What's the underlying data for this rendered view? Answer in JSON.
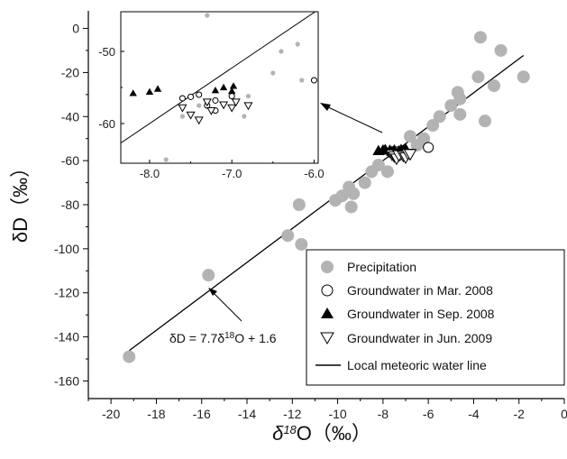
{
  "chart_data": {
    "main": {
      "type": "scatter",
      "xlabel": "δ18O（‰）",
      "xlabel_parts": {
        "delta": "δ",
        "sup": "18",
        "base": "O（‰）"
      },
      "ylabel": "δD（‰）",
      "xlim": [
        -21,
        0
      ],
      "ylim": [
        -168,
        8
      ],
      "xticks": [
        -20,
        -18,
        -16,
        -14,
        -12,
        -10,
        -8,
        -6,
        -4,
        -2,
        0
      ],
      "yticks": [
        0,
        -20,
        -40,
        -60,
        -80,
        -100,
        -120,
        -140,
        -160
      ],
      "series": [
        {
          "name": "Precipitation",
          "marker": "filled-circle",
          "color": "#b3b3b3",
          "points": [
            [
              -19.2,
              -149
            ],
            [
              -15.7,
              -112
            ],
            [
              -12.2,
              -94
            ],
            [
              -11.7,
              -80
            ],
            [
              -11.6,
              -98
            ],
            [
              -10.1,
              -78
            ],
            [
              -9.8,
              -76
            ],
            [
              -9.5,
              -72
            ],
            [
              -9.4,
              -81
            ],
            [
              -9.3,
              -75
            ],
            [
              -8.8,
              -70
            ],
            [
              -8.5,
              -65
            ],
            [
              -8.2,
              -62
            ],
            [
              -7.8,
              -65
            ],
            [
              -7.4,
              -58
            ],
            [
              -7.0,
              -57
            ],
            [
              -6.8,
              -49
            ],
            [
              -6.5,
              -53
            ],
            [
              -6.2,
              -50
            ],
            [
              -5.8,
              -44
            ],
            [
              -5.5,
              -40
            ],
            [
              -5.0,
              -35
            ],
            [
              -4.7,
              -29
            ],
            [
              -4.6,
              -39
            ],
            [
              -4.6,
              -32
            ],
            [
              -3.8,
              -22
            ],
            [
              -3.7,
              -4
            ],
            [
              -3.5,
              -42
            ],
            [
              -3.1,
              -26
            ],
            [
              -2.8,
              -10
            ],
            [
              -1.8,
              -22
            ]
          ]
        },
        {
          "name": "Groundwater in Mar. 2008",
          "marker": "open-circle",
          "color": "#000000",
          "points": [
            [
              -6.0,
              -54
            ],
            [
              -7.6,
              -56.5
            ],
            [
              -7.5,
              -56.2
            ],
            [
              -7.4,
              -56
            ],
            [
              -7.2,
              -56.8
            ],
            [
              -7.3,
              -57.5
            ]
          ]
        },
        {
          "name": "Groundwater in Sep. 2008",
          "marker": "filled-triangle",
          "color": "#000000",
          "points": [
            [
              -8.2,
              -55.5
            ],
            [
              -8.0,
              -55.2
            ],
            [
              -7.9,
              -55.0
            ],
            [
              -7.7,
              -55.3
            ],
            [
              -7.6,
              -55.8
            ],
            [
              -7.5,
              -55.2
            ],
            [
              -7.3,
              -55.6
            ],
            [
              -7.2,
              -55.0
            ],
            [
              -7.1,
              -55.4
            ],
            [
              -7.0,
              -54.6
            ]
          ]
        },
        {
          "name": "Groundwater in Jun. 2009",
          "marker": "open-triangle",
          "color": "#000000",
          "points": [
            [
              -7.6,
              -57.2
            ],
            [
              -7.5,
              -58.0
            ],
            [
              -7.4,
              -59.0
            ],
            [
              -7.3,
              -57.5
            ],
            [
              -7.1,
              -57.8
            ],
            [
              -7.0,
              -58.5
            ],
            [
              -6.9,
              -56.8
            ],
            [
              -6.8,
              -57.0
            ]
          ]
        }
      ],
      "line": {
        "name": "Local meteoric water line",
        "slope": 7.7,
        "intercept": 1.6,
        "x_range": [
          -19.2,
          -1.8
        ]
      },
      "annotation": {
        "prefix": "δD = 7.7δ",
        "sup": "18",
        "suffix": "O + 1.6"
      },
      "legend_position": "bottom-right"
    },
    "inset": {
      "type": "scatter",
      "xlim": [
        -8.35,
        -5.95
      ],
      "ylim": [
        -65.5,
        -44.5
      ],
      "xticks": [
        -8.0,
        -7.0,
        -6.0
      ],
      "xtick_labels": [
        "-8.0",
        "-7.0",
        "-6.0"
      ],
      "yticks": [
        -50,
        -60
      ],
      "series": [
        {
          "name": "Precipitation",
          "points": [
            [
              -7.8,
              -65
            ],
            [
              -7.4,
              -57.5
            ],
            [
              -6.8,
              -56.2
            ],
            [
              -6.5,
              -53
            ],
            [
              -6.4,
              -50
            ],
            [
              -6.2,
              -49
            ],
            [
              -6.15,
              -54
            ],
            [
              -7.6,
              -59
            ],
            [
              -6.85,
              -59
            ],
            [
              -7.3,
              -45
            ]
          ]
        },
        {
          "name": "Groundwater in Mar. 2008",
          "points": [
            [
              -6.0,
              -54
            ],
            [
              -7.6,
              -56.5
            ],
            [
              -7.5,
              -56.3
            ],
            [
              -7.4,
              -56
            ],
            [
              -7.2,
              -56.8
            ],
            [
              -7.3,
              -57.5
            ],
            [
              -7.2,
              -58.2
            ],
            [
              -7.0,
              -56.2
            ]
          ]
        },
        {
          "name": "Groundwater in Sep. 2008",
          "points": [
            [
              -8.2,
              -55.8
            ],
            [
              -8.0,
              -55.6
            ],
            [
              -7.9,
              -55.2
            ],
            [
              -7.2,
              -55.4
            ],
            [
              -7.1,
              -55.0
            ],
            [
              -7.0,
              -55.5
            ],
            [
              -6.98,
              -54.8
            ]
          ]
        },
        {
          "name": "Groundwater in Jun. 2009",
          "points": [
            [
              -7.6,
              -57.8
            ],
            [
              -7.5,
              -58.8
            ],
            [
              -7.4,
              -59.5
            ],
            [
              -7.3,
              -57.0
            ],
            [
              -7.25,
              -58.2
            ],
            [
              -7.1,
              -57.4
            ],
            [
              -7.0,
              -57.8
            ],
            [
              -6.95,
              -57.0
            ],
            [
              -6.8,
              -57.5
            ]
          ]
        }
      ]
    }
  }
}
